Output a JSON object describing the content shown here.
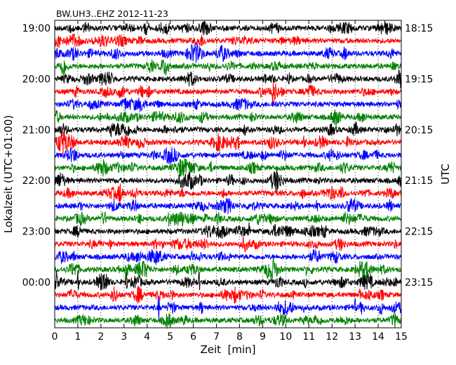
{
  "chart_data": {
    "type": "line",
    "title": "BW.UH3..EHZ 2012-11-23",
    "xlabel": "Zeit  [min]",
    "ylabel_left": "Lokalzeit (UTC+01:00)",
    "ylabel_right": "UTC",
    "xlim": [
      0,
      15
    ],
    "x_ticks": [
      "0",
      "1",
      "2",
      "3",
      "4",
      "5",
      "6",
      "7",
      "8",
      "9",
      "10",
      "11",
      "12",
      "13",
      "14",
      "15"
    ],
    "left_tick_labels": [
      "19:00",
      "20:00",
      "21:00",
      "22:00",
      "23:00",
      "00:00"
    ],
    "right_tick_labels": [
      "18:15",
      "19:15",
      "20:15",
      "21:15",
      "22:15",
      "23:15"
    ],
    "traces_per_hour": 4,
    "trace_minutes": 15,
    "trace_count": 24,
    "colors": [
      "#000000",
      "#ff0000",
      "#0000ff",
      "#008000"
    ],
    "notable_events": [
      {
        "trace": 20,
        "minute": 0.05,
        "amplitude": 1.0
      },
      {
        "trace": 20,
        "minute": 1.0,
        "amplitude": 0.9
      },
      {
        "trace": 20,
        "minute": 2.2,
        "amplitude": 0.8
      },
      {
        "trace": 20,
        "minute": 3.1,
        "amplitude": 0.9
      },
      {
        "trace": 20,
        "minute": 6.25,
        "amplitude": 0.7
      },
      {
        "trace": 19,
        "minute": 2.8,
        "amplitude": 0.6
      },
      {
        "trace": 19,
        "minute": 3.1,
        "amplitude": 0.7
      },
      {
        "trace": 19,
        "minute": 10.9,
        "amplitude": 0.6
      },
      {
        "trace": 21,
        "minute": 7.8,
        "amplitude": 0.5
      },
      {
        "trace": 21,
        "minute": 13.2,
        "amplitude": 0.5
      },
      {
        "trace": 22,
        "minute": 4.5,
        "amplitude": 1.0
      },
      {
        "trace": 22,
        "minute": 13.0,
        "amplitude": 0.6
      },
      {
        "trace": 16,
        "minute": 8.4,
        "amplitude": 0.6
      }
    ]
  }
}
